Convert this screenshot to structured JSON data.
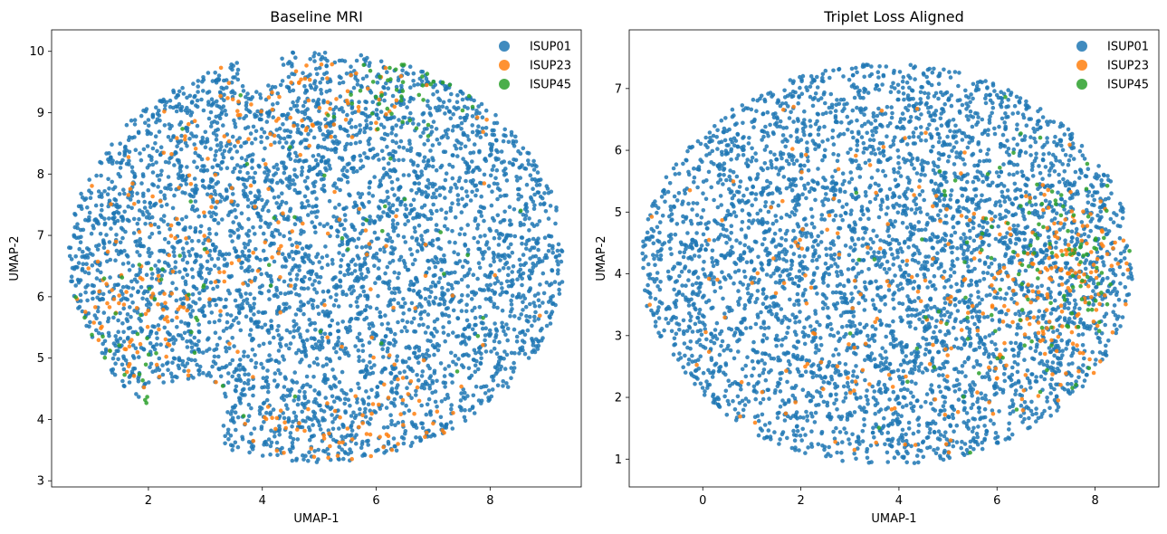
{
  "chart_data": [
    {
      "type": "scatter",
      "title": "Baseline MRI",
      "xlabel": "UMAP-1",
      "ylabel": "UMAP-2",
      "xlim": [
        0.3,
        9.6
      ],
      "ylim": [
        2.9,
        10.35
      ],
      "xticks": [
        2,
        4,
        6,
        8
      ],
      "yticks": [
        3,
        4,
        5,
        6,
        7,
        8,
        9,
        10
      ],
      "legend_position": "top-right",
      "series": [
        {
          "name": "ISUP01",
          "color": "#1f77b4",
          "approx_count": 4300
        },
        {
          "name": "ISUP23",
          "color": "#ff7f0e",
          "approx_count": 320
        },
        {
          "name": "ISUP45",
          "color": "#2ca02c",
          "approx_count": 110
        }
      ]
    },
    {
      "type": "scatter",
      "title": "Triplet Loss Aligned",
      "xlabel": "UMAP-1",
      "ylabel": "UMAP-2",
      "xlim": [
        -1.5,
        9.3
      ],
      "ylim": [
        0.55,
        7.95
      ],
      "xticks": [
        0,
        2,
        4,
        6,
        8
      ],
      "yticks": [
        1,
        2,
        3,
        4,
        5,
        6,
        7
      ],
      "legend_position": "top-right",
      "series": [
        {
          "name": "ISUP01",
          "color": "#1f77b4",
          "approx_count": 4300
        },
        {
          "name": "ISUP23",
          "color": "#ff7f0e",
          "approx_count": 320
        },
        {
          "name": "ISUP45",
          "color": "#2ca02c",
          "approx_count": 130
        }
      ]
    }
  ]
}
